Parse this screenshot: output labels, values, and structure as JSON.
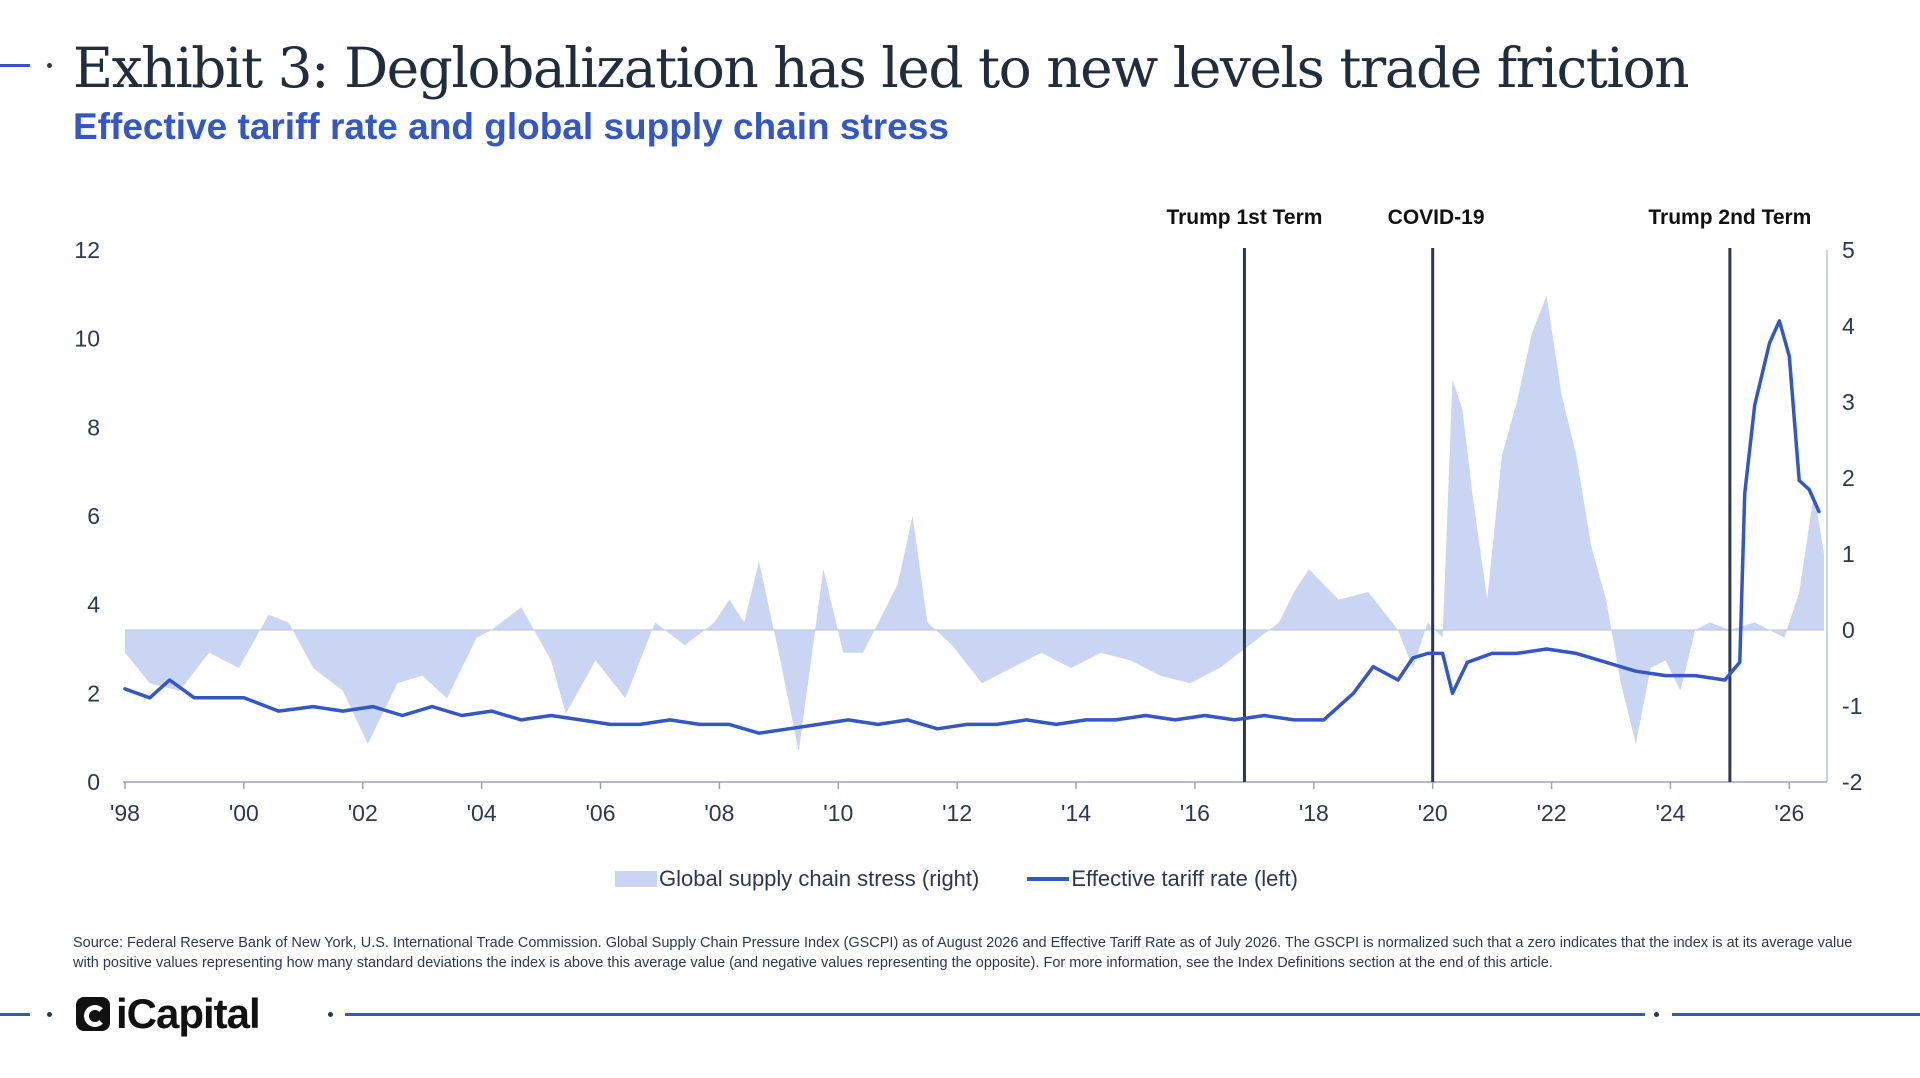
{
  "header": {
    "title": "Exhibit 3: Deglobalization has led to new levels trade friction",
    "subtitle": "Effective tariff rate and global supply chain stress"
  },
  "chart_data": {
    "type": "line",
    "x_range": [
      "1998-01",
      "2026-08"
    ],
    "x_tick_labels": [
      "'98",
      "'00",
      "'02",
      "'04",
      "'06",
      "'08",
      "'10",
      "'12",
      "'14",
      "'16",
      "'18",
      "'20",
      "'22",
      "'24",
      "'26"
    ],
    "y_left": {
      "min": 0,
      "max": 12,
      "ticks": [
        0,
        2,
        4,
        6,
        8,
        10,
        12
      ]
    },
    "y_right": {
      "min": -2,
      "max": 5,
      "ticks": [
        -2,
        -1,
        0,
        1,
        2,
        3,
        4,
        5
      ]
    },
    "series": [
      {
        "name": "Global supply chain stress (right)",
        "type": "area",
        "axis": "right",
        "color": "#c9d5f3",
        "points": [
          [
            "1998-01",
            -0.3
          ],
          [
            "1998-06",
            -0.7
          ],
          [
            "1998-12",
            -0.8
          ],
          [
            "1999-06",
            -0.3
          ],
          [
            "1999-12",
            -0.5
          ],
          [
            "2000-06",
            0.2
          ],
          [
            "2000-10",
            0.1
          ],
          [
            "2001-03",
            -0.5
          ],
          [
            "2001-09",
            -0.8
          ],
          [
            "2002-02",
            -1.5
          ],
          [
            "2002-08",
            -0.7
          ],
          [
            "2003-01",
            -0.6
          ],
          [
            "2003-06",
            -0.9
          ],
          [
            "2003-12",
            -0.1
          ],
          [
            "2004-03",
            0
          ],
          [
            "2004-09",
            0.3
          ],
          [
            "2005-03",
            -0.4
          ],
          [
            "2005-06",
            -1.1
          ],
          [
            "2005-12",
            -0.4
          ],
          [
            "2006-06",
            -0.9
          ],
          [
            "2006-12",
            0.1
          ],
          [
            "2007-06",
            -0.2
          ],
          [
            "2007-12",
            0.1
          ],
          [
            "2008-03",
            0.4
          ],
          [
            "2008-06",
            0.1
          ],
          [
            "2008-09",
            0.9
          ],
          [
            "2009-01",
            -0.3
          ],
          [
            "2009-05",
            -1.6
          ],
          [
            "2009-10",
            0.8
          ],
          [
            "2010-02",
            -0.3
          ],
          [
            "2010-06",
            -0.3
          ],
          [
            "2011-01",
            0.6
          ],
          [
            "2011-04",
            1.5
          ],
          [
            "2011-07",
            0.1
          ],
          [
            "2011-12",
            -0.2
          ],
          [
            "2012-06",
            -0.7
          ],
          [
            "2012-12",
            -0.5
          ],
          [
            "2013-06",
            -0.3
          ],
          [
            "2013-12",
            -0.5
          ],
          [
            "2014-06",
            -0.3
          ],
          [
            "2014-12",
            -0.4
          ],
          [
            "2015-06",
            -0.6
          ],
          [
            "2015-12",
            -0.7
          ],
          [
            "2016-06",
            -0.5
          ],
          [
            "2016-12",
            -0.2
          ],
          [
            "2017-06",
            0.1
          ],
          [
            "2017-09",
            0.5
          ],
          [
            "2017-12",
            0.8
          ],
          [
            "2018-06",
            0.4
          ],
          [
            "2018-12",
            0.5
          ],
          [
            "2019-06",
            0
          ],
          [
            "2019-09",
            -0.5
          ],
          [
            "2019-12",
            0.1
          ],
          [
            "2020-03",
            -0.1
          ],
          [
            "2020-05",
            3.3
          ],
          [
            "2020-07",
            2.9
          ],
          [
            "2020-09",
            1.8
          ],
          [
            "2020-12",
            0.4
          ],
          [
            "2021-03",
            2.3
          ],
          [
            "2021-06",
            3.0
          ],
          [
            "2021-09",
            3.9
          ],
          [
            "2021-12",
            4.4
          ],
          [
            "2022-03",
            3.1
          ],
          [
            "2022-06",
            2.3
          ],
          [
            "2022-09",
            1.1
          ],
          [
            "2022-12",
            0.4
          ],
          [
            "2023-03",
            -0.7
          ],
          [
            "2023-06",
            -1.5
          ],
          [
            "2023-09",
            -0.5
          ],
          [
            "2023-12",
            -0.4
          ],
          [
            "2024-03",
            -0.8
          ],
          [
            "2024-06",
            0
          ],
          [
            "2024-09",
            0.1
          ],
          [
            "2025-01",
            0
          ],
          [
            "2025-06",
            0.1
          ],
          [
            "2025-12",
            -0.1
          ],
          [
            "2026-03",
            0.5
          ],
          [
            "2026-06",
            1.8
          ],
          [
            "2026-08",
            1
          ]
        ]
      },
      {
        "name": "Effective tariff rate (left)",
        "type": "line",
        "axis": "left",
        "color": "#3457c5",
        "points": [
          [
            "1998-01",
            2.1
          ],
          [
            "1998-06",
            1.9
          ],
          [
            "1998-10",
            2.3
          ],
          [
            "1999-03",
            1.9
          ],
          [
            "1999-08",
            1.9
          ],
          [
            "2000-01",
            1.9
          ],
          [
            "2000-08",
            1.6
          ],
          [
            "2001-03",
            1.7
          ],
          [
            "2001-09",
            1.6
          ],
          [
            "2002-03",
            1.7
          ],
          [
            "2002-09",
            1.5
          ],
          [
            "2003-03",
            1.7
          ],
          [
            "2003-09",
            1.5
          ],
          [
            "2004-03",
            1.6
          ],
          [
            "2004-09",
            1.4
          ],
          [
            "2005-03",
            1.5
          ],
          [
            "2005-09",
            1.4
          ],
          [
            "2006-03",
            1.3
          ],
          [
            "2006-09",
            1.3
          ],
          [
            "2007-03",
            1.4
          ],
          [
            "2007-09",
            1.3
          ],
          [
            "2008-03",
            1.3
          ],
          [
            "2008-09",
            1.1
          ],
          [
            "2009-03",
            1.2
          ],
          [
            "2009-09",
            1.3
          ],
          [
            "2010-03",
            1.4
          ],
          [
            "2010-09",
            1.3
          ],
          [
            "2011-03",
            1.4
          ],
          [
            "2011-09",
            1.2
          ],
          [
            "2012-03",
            1.3
          ],
          [
            "2012-09",
            1.3
          ],
          [
            "2013-03",
            1.4
          ],
          [
            "2013-09",
            1.3
          ],
          [
            "2014-03",
            1.4
          ],
          [
            "2014-09",
            1.4
          ],
          [
            "2015-03",
            1.5
          ],
          [
            "2015-09",
            1.4
          ],
          [
            "2016-03",
            1.5
          ],
          [
            "2016-09",
            1.4
          ],
          [
            "2017-03",
            1.5
          ],
          [
            "2017-09",
            1.4
          ],
          [
            "2018-03",
            1.4
          ],
          [
            "2018-09",
            2.0
          ],
          [
            "2019-01",
            2.6
          ],
          [
            "2019-06",
            2.3
          ],
          [
            "2019-09",
            2.8
          ],
          [
            "2019-12",
            2.9
          ],
          [
            "2020-03",
            2.9
          ],
          [
            "2020-05",
            2.0
          ],
          [
            "2020-08",
            2.7
          ],
          [
            "2021-01",
            2.9
          ],
          [
            "2021-06",
            2.9
          ],
          [
            "2021-12",
            3.0
          ],
          [
            "2022-06",
            2.9
          ],
          [
            "2022-12",
            2.7
          ],
          [
            "2023-06",
            2.5
          ],
          [
            "2023-12",
            2.4
          ],
          [
            "2024-06",
            2.4
          ],
          [
            "2024-12",
            2.3
          ],
          [
            "2025-03",
            2.7
          ],
          [
            "2025-04",
            6.5
          ],
          [
            "2025-06",
            8.5
          ],
          [
            "2025-09",
            9.9
          ],
          [
            "2025-11",
            10.4
          ],
          [
            "2026-01",
            9.6
          ],
          [
            "2026-03",
            6.8
          ],
          [
            "2026-05",
            6.6
          ],
          [
            "2026-07",
            6.1
          ]
        ]
      }
    ],
    "annotations": [
      {
        "x": "2016-11",
        "label": "Trump 1st Term"
      },
      {
        "x": "2020-01",
        "label": "COVID-19"
      },
      {
        "x": "2025-01",
        "label": "Trump 2nd Term"
      }
    ],
    "legend": [
      "Global supply chain stress (right)",
      "Effective tariff rate (left)"
    ],
    "legend_position": "bottom-center",
    "grid": false
  },
  "footer": {
    "source": "Source: Federal Reserve Bank of New York, U.S. International Trade Commission. Global  Supply Chain  Pressure Index (GSCPI) as of August 2026 and Effective Tariff Rate as of July 2026. The GSCPI is normalized such that a zero indicates that the index is at its average value with positive values representing how many standard deviations the index is above this average value (and negative values representing the opposite). For more information, see the Index Definitions section at the end of this article.",
    "logo": "iCapital"
  },
  "colors": {
    "accent": "#3457c5",
    "area": "#c9d5f3",
    "annotation_line": "#2b3850"
  }
}
